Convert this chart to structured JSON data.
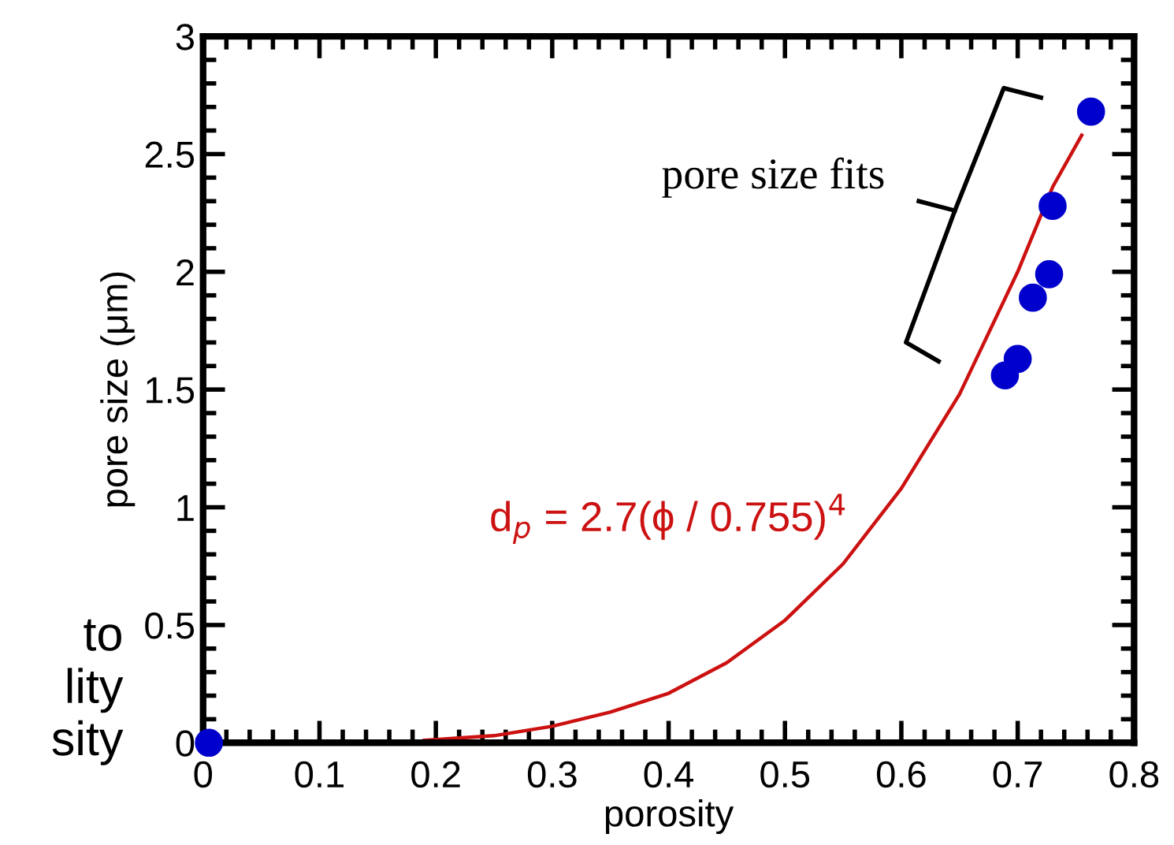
{
  "chart_data": {
    "type": "scatter",
    "xlabel": "porosity",
    "ylabel": "pore size (μm)",
    "xlim": [
      0,
      0.8
    ],
    "xticks": [
      0,
      0.1,
      0.2,
      0.3,
      0.4,
      0.5,
      0.6,
      0.7,
      0.8
    ],
    "ylim": [
      0,
      3
    ],
    "yticks": [
      0,
      0.5,
      1,
      1.5,
      2,
      2.5,
      3
    ],
    "grid": false,
    "marker": "circle",
    "series": [
      {
        "color": "#0000cc",
        "x": [
          0.005,
          0.689,
          0.7,
          0.713,
          0.727,
          0.73,
          0.763
        ],
        "values": [
          0,
          1.56,
          1.63,
          1.89,
          1.99,
          2.28,
          2.68
        ]
      },
      {
        "type": "line",
        "color": "#cc1111",
        "marker": "none",
        "line_style": "solid",
        "x": [
          0.19,
          0.25,
          0.3,
          0.35,
          0.4,
          0.45,
          0.5,
          0.55,
          0.6,
          0.65,
          0.7,
          0.73,
          0.755
        ],
        "values": [
          0.01,
          0.03,
          0.07,
          0.13,
          0.21,
          0.34,
          0.52,
          0.76,
          1.08,
          1.48,
          2.0,
          2.36,
          2.58
        ]
      }
    ],
    "annotations": [
      "pore size fits",
      "d$_{p}$ = 2.7(ϕ / 0.755)$^{4}$",
      "to",
      "lity",
      "sity"
    ]
  }
}
